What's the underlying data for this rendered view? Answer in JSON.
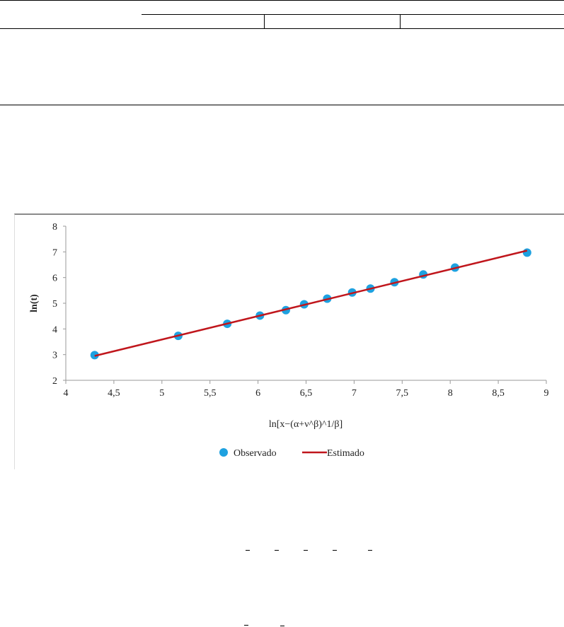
{
  "chart_data": {
    "type": "scatter",
    "xlabel": "ln[x−(α+ν^β)^1/β]",
    "ylabel": "ln(t)",
    "xlim": [
      4,
      9
    ],
    "ylim": [
      2,
      8
    ],
    "x_ticks": [
      "4",
      "4,5",
      "5",
      "5,5",
      "6",
      "6,5",
      "7",
      "7,5",
      "8",
      "8,5",
      "9"
    ],
    "y_ticks": [
      "2",
      "3",
      "4",
      "5",
      "6",
      "7",
      "8"
    ],
    "grid": false,
    "legend_position": "bottom",
    "series": [
      {
        "name": "Observado",
        "kind": "points",
        "color": "#1ea1e0",
        "x": [
          4.3,
          5.17,
          5.68,
          6.02,
          6.29,
          6.48,
          6.72,
          6.98,
          7.17,
          7.42,
          7.72,
          8.05,
          8.8
        ],
        "y": [
          2.98,
          3.73,
          4.2,
          4.52,
          4.73,
          4.96,
          5.18,
          5.42,
          5.57,
          5.82,
          6.12,
          6.39,
          6.97
        ]
      },
      {
        "name": "Estimado",
        "kind": "line",
        "color": "#c0161c",
        "x": [
          4.3,
          8.8
        ],
        "y": [
          2.95,
          7.05
        ]
      }
    ]
  }
}
